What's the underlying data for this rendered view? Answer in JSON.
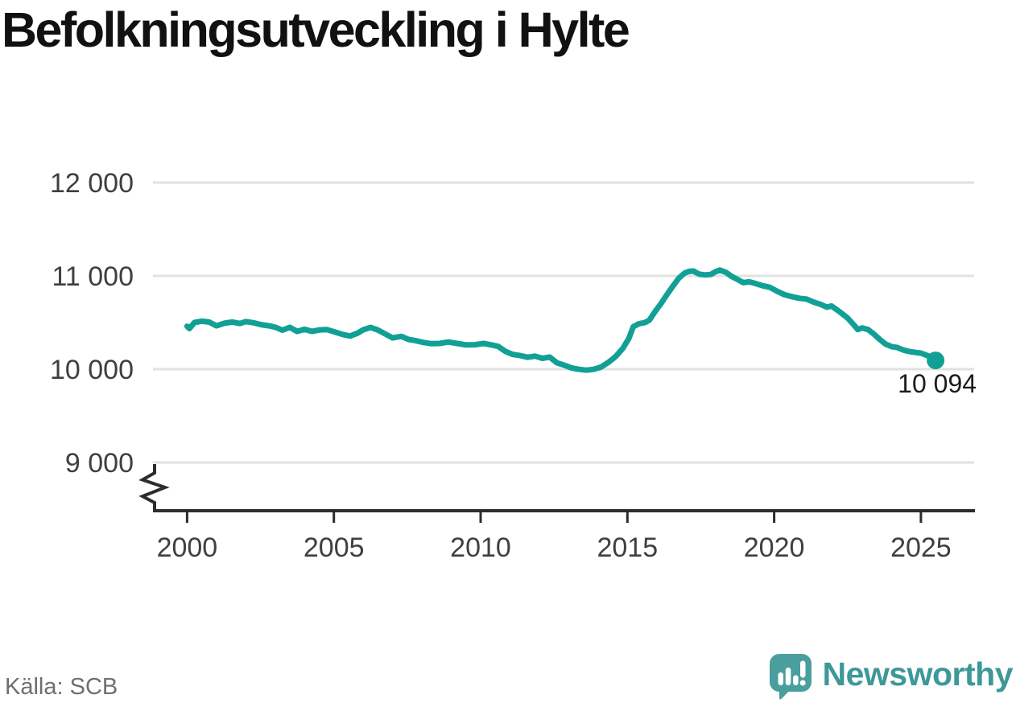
{
  "title": "Befolkningsutveckling i Hylte",
  "source": "Källa: SCB",
  "branding": {
    "wordmark": "Newsworthy",
    "icon": "newsworthy-speech-bubble-bar-chart-icon"
  },
  "colors": {
    "line": "#12a096",
    "marker": "#12a096",
    "grid": "#e2e2e2",
    "axis": "#2d2d2d",
    "tick_label": "#3f3f3f",
    "title": "#111111",
    "end_label": "#1b1b1b",
    "source": "#6e6e73",
    "brand_text": "#3e9898",
    "brand_icon": "#4a9e9e"
  },
  "chart_data": {
    "type": "line",
    "title": "Befolkningsutveckling i Hylte",
    "xlabel": "",
    "ylabel": "",
    "grid": "horizontal",
    "legend": "none",
    "axis_break_bottom_left": true,
    "xlim": [
      1998.9,
      2026.9
    ],
    "ylim": [
      8700,
      12400
    ],
    "xticks": [
      2000,
      2005,
      2010,
      2015,
      2020,
      2025
    ],
    "yticks": [
      12000,
      11000,
      10000,
      9000
    ],
    "ytick_labels": [
      "12 000",
      "11 000",
      "10 000",
      "9 000"
    ],
    "end_label": "10 094",
    "end_value": 10094,
    "x": [
      2000.0,
      2000.08,
      2000.25,
      2000.5,
      2000.75,
      2001.0,
      2001.3,
      2001.55,
      2001.8,
      2002.0,
      2002.3,
      2002.55,
      2002.8,
      2003.0,
      2003.25,
      2003.5,
      2003.75,
      2004.0,
      2004.25,
      2004.5,
      2004.75,
      2005.0,
      2005.3,
      2005.55,
      2005.8,
      2006.0,
      2006.25,
      2006.5,
      2006.75,
      2007.0,
      2007.3,
      2007.55,
      2007.8,
      2008.0,
      2008.3,
      2008.6,
      2008.9,
      2009.2,
      2009.5,
      2009.8,
      2010.1,
      2010.4,
      2010.6,
      2010.85,
      2011.1,
      2011.35,
      2011.6,
      2011.85,
      2012.1,
      2012.35,
      2012.6,
      2012.85,
      2013.1,
      2013.35,
      2013.6,
      2013.85,
      2014.1,
      2014.35,
      2014.6,
      2014.85,
      2015.05,
      2015.2,
      2015.4,
      2015.6,
      2015.75,
      2015.95,
      2016.15,
      2016.35,
      2016.55,
      2016.75,
      2016.95,
      2017.1,
      2017.25,
      2017.45,
      2017.65,
      2017.85,
      2018.0,
      2018.15,
      2018.35,
      2018.55,
      2018.75,
      2018.95,
      2019.15,
      2019.35,
      2019.6,
      2019.85,
      2020.1,
      2020.35,
      2020.6,
      2020.85,
      2021.1,
      2021.35,
      2021.6,
      2021.8,
      2021.95,
      2022.1,
      2022.3,
      2022.5,
      2022.7,
      2022.85,
      2023.0,
      2023.2,
      2023.4,
      2023.6,
      2023.8,
      2024.0,
      2024.2,
      2024.4,
      2024.6,
      2024.8,
      2025.0,
      2025.2,
      2025.35,
      2025.5
    ],
    "values": [
      10460,
      10435,
      10500,
      10515,
      10505,
      10465,
      10495,
      10505,
      10490,
      10510,
      10495,
      10475,
      10465,
      10450,
      10418,
      10448,
      10405,
      10428,
      10405,
      10420,
      10425,
      10402,
      10372,
      10355,
      10385,
      10422,
      10447,
      10420,
      10378,
      10335,
      10352,
      10318,
      10305,
      10290,
      10274,
      10276,
      10291,
      10276,
      10260,
      10262,
      10276,
      10258,
      10244,
      10190,
      10158,
      10146,
      10128,
      10140,
      10116,
      10130,
      10068,
      10042,
      10014,
      9998,
      9990,
      9998,
      10022,
      10072,
      10135,
      10225,
      10330,
      10455,
      10488,
      10500,
      10525,
      10620,
      10705,
      10800,
      10890,
      10975,
      11030,
      11048,
      11052,
      11018,
      11010,
      11016,
      11045,
      11062,
      11040,
      10995,
      10962,
      10928,
      10936,
      10920,
      10895,
      10878,
      10835,
      10798,
      10778,
      10760,
      10752,
      10718,
      10692,
      10665,
      10678,
      10645,
      10598,
      10548,
      10480,
      10425,
      10442,
      10424,
      10375,
      10318,
      10268,
      10242,
      10232,
      10205,
      10190,
      10180,
      10172,
      10148,
      10132,
      10094
    ]
  }
}
